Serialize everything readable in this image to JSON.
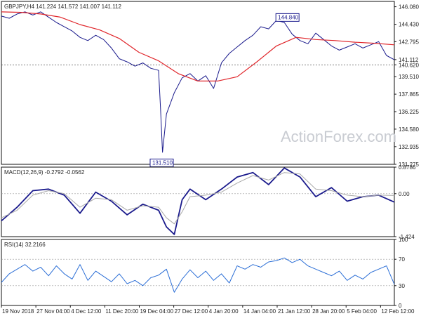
{
  "chart_data": [
    {
      "type": "line",
      "panel": "price",
      "title": "GBPJPY,H4  141.224 141.572 141.007 141.112",
      "yticks": [
        146.08,
        144.43,
        142.795,
        141.112,
        140.62,
        139.51,
        137.865,
        136.225,
        134.58,
        132.935,
        131.275
      ],
      "ylim": [
        131.275,
        146.58
      ],
      "xtick_labels": [
        "19 Nov 2018",
        "27 Nov 04:00",
        "4 Dec 12:00",
        "11 Dec 20:00",
        "19 Dec 04:00",
        "27 Dec 12:00",
        "4 Jan 20:00",
        "14 Jan 04:00",
        "21 Jan 12:00",
        "28 Jan 20:00",
        "5 Feb 04:00",
        "12 Feb 12:00"
      ],
      "annotations": [
        {
          "text": "144.840",
          "x_index": 0.728,
          "value": 144.84
        },
        {
          "text": "131.510",
          "x_index": 0.408,
          "value": 131.51
        }
      ],
      "current_price": 141.112,
      "reference_level": 140.62,
      "series": [
        {
          "role": "price",
          "color": "#1a1a8c",
          "x": [
            0,
            0.02,
            0.04,
            0.06,
            0.08,
            0.1,
            0.12,
            0.14,
            0.16,
            0.18,
            0.2,
            0.22,
            0.24,
            0.26,
            0.28,
            0.3,
            0.32,
            0.34,
            0.36,
            0.38,
            0.4,
            0.405,
            0.41,
            0.42,
            0.44,
            0.46,
            0.48,
            0.5,
            0.52,
            0.54,
            0.56,
            0.58,
            0.6,
            0.62,
            0.64,
            0.66,
            0.68,
            0.7,
            0.72,
            0.74,
            0.76,
            0.78,
            0.8,
            0.82,
            0.84,
            0.86,
            0.88,
            0.9,
            0.92,
            0.94,
            0.96,
            0.98,
            1.0
          ],
          "values": [
            145.2,
            145.0,
            145.4,
            145.6,
            145.3,
            145.6,
            145.1,
            144.6,
            144.2,
            143.8,
            143.2,
            142.9,
            143.4,
            143.0,
            142.2,
            141.2,
            140.9,
            140.5,
            140.8,
            140.3,
            140.1,
            136.5,
            132.4,
            136.0,
            138.0,
            139.4,
            139.8,
            139.1,
            139.6,
            138.4,
            140.8,
            141.7,
            142.3,
            142.9,
            143.4,
            144.2,
            144.0,
            144.8,
            144.6,
            143.5,
            142.9,
            142.6,
            143.6,
            143.0,
            142.4,
            142.0,
            142.3,
            142.6,
            142.2,
            142.5,
            142.8,
            141.5,
            141.1
          ]
        },
        {
          "role": "ma",
          "color": "#e0262b",
          "x": [
            0,
            0.05,
            0.1,
            0.15,
            0.2,
            0.25,
            0.3,
            0.35,
            0.4,
            0.45,
            0.5,
            0.55,
            0.6,
            0.65,
            0.7,
            0.75,
            0.8,
            0.85,
            0.9,
            0.95,
            1.0
          ],
          "values": [
            145.6,
            145.55,
            145.4,
            145.1,
            144.4,
            143.9,
            143.1,
            141.8,
            141.0,
            139.8,
            139.1,
            139.1,
            139.5,
            140.9,
            142.4,
            143.2,
            143.0,
            142.9,
            142.75,
            142.65,
            142.5
          ]
        }
      ]
    },
    {
      "type": "line",
      "panel": "macd",
      "title": "MACD(12,26,9) -0.2792 -0.0562",
      "yticks": [
        0.8786,
        0.0,
        -1.424
      ],
      "ylim": [
        -1.424,
        0.8786
      ],
      "series": [
        {
          "role": "macd",
          "color": "#1a1a8c",
          "x": [
            0,
            0.04,
            0.08,
            0.12,
            0.16,
            0.2,
            0.24,
            0.28,
            0.32,
            0.36,
            0.4,
            0.42,
            0.44,
            0.46,
            0.48,
            0.52,
            0.56,
            0.6,
            0.64,
            0.68,
            0.72,
            0.76,
            0.8,
            0.84,
            0.88,
            0.92,
            0.96,
            1.0
          ],
          "values": [
            -0.9,
            -0.45,
            0.1,
            0.15,
            -0.05,
            -0.65,
            0.05,
            -0.25,
            -0.7,
            -0.35,
            -0.55,
            -1.1,
            -1.35,
            -0.2,
            0.15,
            -0.2,
            0.15,
            0.55,
            0.7,
            0.3,
            0.85,
            0.55,
            -0.1,
            0.2,
            -0.25,
            -0.1,
            -0.05,
            -0.28
          ]
        },
        {
          "role": "signal",
          "color": "#a8a8a8",
          "x": [
            0,
            0.04,
            0.08,
            0.12,
            0.16,
            0.2,
            0.24,
            0.28,
            0.32,
            0.36,
            0.4,
            0.42,
            0.44,
            0.46,
            0.48,
            0.52,
            0.56,
            0.6,
            0.64,
            0.68,
            0.72,
            0.76,
            0.8,
            0.84,
            0.88,
            0.92,
            0.96,
            1.0
          ],
          "values": [
            -0.8,
            -0.55,
            -0.05,
            0.1,
            0.0,
            -0.45,
            -0.15,
            -0.2,
            -0.55,
            -0.4,
            -0.45,
            -0.8,
            -1.0,
            -0.6,
            -0.1,
            -0.05,
            0.05,
            0.35,
            0.6,
            0.45,
            0.7,
            0.65,
            0.15,
            0.1,
            -0.05,
            -0.1,
            -0.05,
            -0.06
          ]
        }
      ]
    },
    {
      "type": "line",
      "panel": "rsi",
      "title": "RSI(14) 32.2166",
      "yticks": [
        100,
        70,
        30,
        0
      ],
      "ylim": [
        0,
        100
      ],
      "reference_lines": [
        70,
        30
      ],
      "series": [
        {
          "role": "rsi",
          "color": "#2b6ed6",
          "x": [
            0,
            0.02,
            0.04,
            0.06,
            0.08,
            0.1,
            0.12,
            0.14,
            0.16,
            0.18,
            0.2,
            0.22,
            0.24,
            0.26,
            0.28,
            0.3,
            0.32,
            0.34,
            0.36,
            0.38,
            0.4,
            0.42,
            0.44,
            0.46,
            0.48,
            0.5,
            0.52,
            0.54,
            0.56,
            0.58,
            0.6,
            0.62,
            0.64,
            0.66,
            0.68,
            0.7,
            0.72,
            0.74,
            0.76,
            0.78,
            0.8,
            0.82,
            0.84,
            0.86,
            0.88,
            0.9,
            0.92,
            0.94,
            0.96,
            0.98,
            1.0
          ],
          "values": [
            35,
            48,
            55,
            62,
            52,
            58,
            45,
            60,
            48,
            40,
            62,
            38,
            52,
            44,
            36,
            48,
            33,
            38,
            30,
            42,
            46,
            55,
            20,
            40,
            54,
            42,
            52,
            38,
            48,
            34,
            60,
            55,
            62,
            58,
            66,
            68,
            72,
            65,
            70,
            60,
            55,
            50,
            45,
            52,
            38,
            46,
            40,
            50,
            55,
            60,
            32
          ]
        }
      ]
    }
  ],
  "watermark": "ActionForex.com"
}
